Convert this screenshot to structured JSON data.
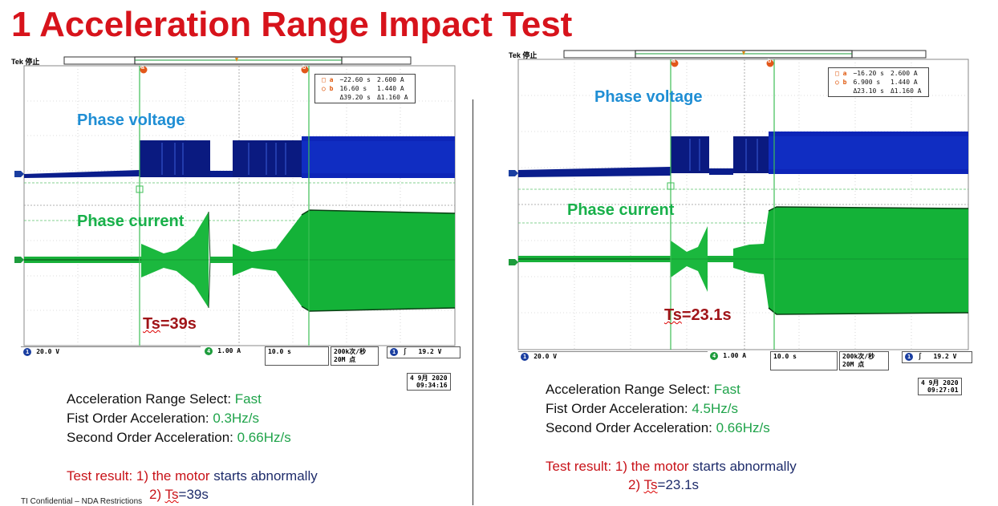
{
  "title": "1 Acceleration Range Impact Test",
  "colors": {
    "title": "#d7131b",
    "voltage": "#1f8ed4",
    "current": "#18b04a",
    "ts": "#a01418",
    "result_red": "#c81218",
    "result_navy": "#1e2c6b"
  },
  "left": {
    "scope": {
      "brand": "Tek 停止",
      "marker_a": "a",
      "marker_b": "b",
      "cursor": {
        "row1": [
          "−22.60 s",
          "2.600 A"
        ],
        "row2": [
          "16.60 s",
          "1.440 A"
        ],
        "row3": [
          "Δ39.20 s",
          "Δ1.160 A"
        ]
      },
      "phase_voltage": "Phase voltage",
      "phase_current": "Phase current",
      "ts_label": "Ts",
      "ts_value": "=39s",
      "ch1": "1",
      "ch1_scale": "20.0 V",
      "ch4": "4",
      "ch4_scale": "1.00 A",
      "timebase": "10.0 s",
      "samp_rate": "200k次/秒",
      "rec_len": "20M 点",
      "trig_ch": "1",
      "trig_sym": "∫",
      "trig_level": "19.2 V",
      "date_line1": "4 9月 2020",
      "date_line2": "09:34:16"
    },
    "params": {
      "range_label": "Acceleration Range Select: ",
      "range_value": "Fast",
      "first_label": "Fist Order Acceleration: ",
      "first_value": "0.3Hz/s",
      "second_label": "Second Order Acceleration: ",
      "second_value": "0.66Hz/s"
    },
    "result": {
      "prefix": "Test result: 1) the motor ",
      "starts": "starts",
      "abnormally": " abnormally",
      "line2_num": "2) ",
      "ts_label": "Ts",
      "ts_value": "=39s"
    }
  },
  "right": {
    "scope": {
      "brand": "Tek 停止",
      "marker_a": "a",
      "marker_b": "b",
      "cursor": {
        "row1": [
          "−16.20 s",
          "2.600 A"
        ],
        "row2": [
          "6.900 s",
          "1.440 A"
        ],
        "row3": [
          "Δ23.10 s",
          "Δ1.160 A"
        ]
      },
      "phase_voltage": "Phase voltage",
      "phase_current": "Phase current",
      "ts_label": "Ts",
      "ts_value": "=23.1s",
      "ch1": "1",
      "ch1_scale": "20.0 V",
      "ch4": "4",
      "ch4_scale": "1.00 A",
      "timebase": "10.0 s",
      "samp_rate": "200k次/秒",
      "rec_len": "20M 点",
      "trig_ch": "1",
      "trig_sym": "∫",
      "trig_level": "19.2 V",
      "date_line1": "4 9月 2020",
      "date_line2": "09:27:01"
    },
    "params": {
      "range_label": "Acceleration Range Select: ",
      "range_value": "Fast",
      "first_label": "Fist Order Acceleration: ",
      "first_value": "4.5Hz/s",
      "second_label": "Second Order Acceleration: ",
      "second_value": "0.66Hz/s"
    },
    "result": {
      "prefix": "Test result: 1) the motor ",
      "starts": "starts",
      "abnormally": " abnormally",
      "line2_num": "2) ",
      "ts_label": "Ts",
      "ts_value": "=23.1s"
    }
  },
  "footer": "TI Confidential – NDA Restrictions"
}
